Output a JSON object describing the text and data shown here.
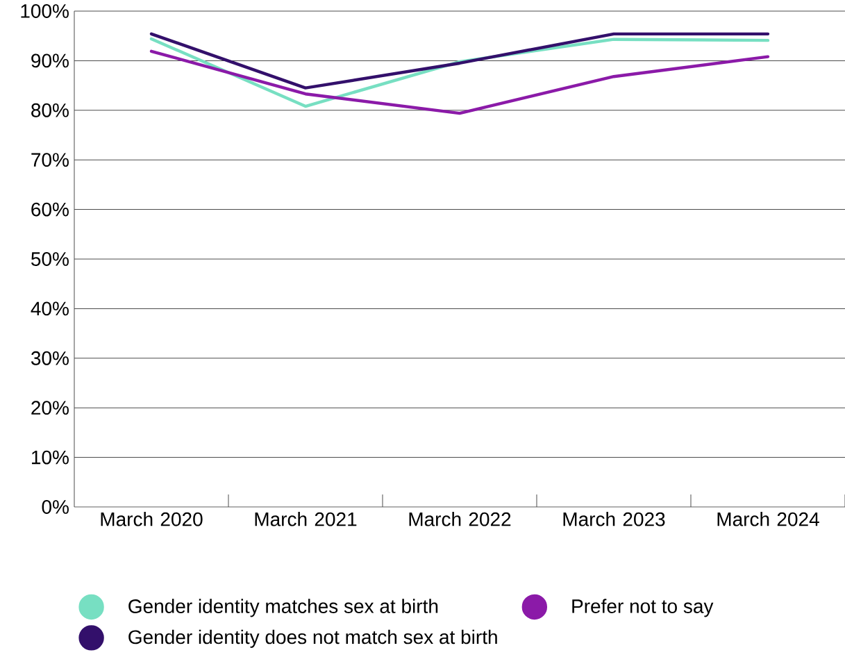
{
  "chart_data": {
    "type": "line",
    "categories": [
      "March 2020",
      "March 2021",
      "March 2022",
      "March 2023",
      "March 2024"
    ],
    "series": [
      {
        "name": "Gender identity matches sex at birth",
        "color": "#77dfc2",
        "values": [
          94.4,
          80.8,
          89.8,
          94.3,
          94.1
        ]
      },
      {
        "name": "Prefer not to say",
        "color": "#8b1aa8",
        "values": [
          91.9,
          83.3,
          79.4,
          86.8,
          90.8
        ]
      },
      {
        "name": "Gender identity does not match sex at birth",
        "color": "#33106b",
        "values": [
          95.4,
          84.5,
          89.5,
          95.4,
          95.4
        ]
      }
    ],
    "ylim": [
      0,
      100
    ],
    "yticks": [
      {
        "value": 0,
        "label": "0%"
      },
      {
        "value": 10,
        "label": "10%"
      },
      {
        "value": 20,
        "label": "20%"
      },
      {
        "value": 30,
        "label": "30%"
      },
      {
        "value": 40,
        "label": "40%"
      },
      {
        "value": 50,
        "label": "50%"
      },
      {
        "value": 60,
        "label": "60%"
      },
      {
        "value": 70,
        "label": "70%"
      },
      {
        "value": 80,
        "label": "80%"
      },
      {
        "value": 90,
        "label": "90%"
      },
      {
        "value": 100,
        "label": "100%"
      }
    ],
    "grid": "y",
    "legend": "bottom",
    "marker": "none",
    "line_style": "solid"
  }
}
